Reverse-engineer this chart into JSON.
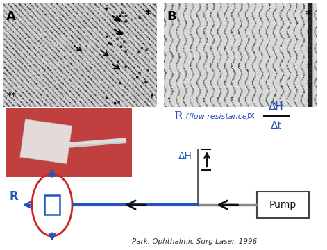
{
  "bg_color": "#ffffff",
  "blue_color": "#2255bb",
  "red_color": "#cc2222",
  "dark_color": "#111111",
  "gray_tube_color": "#888888",
  "r_label": "R",
  "pump_label": "Pump",
  "dh_label": "ΔH",
  "formula_r": "R",
  "formula_sub": " (flow resistance)",
  "formula_prop": "∝",
  "frac_top": "ΔH",
  "frac_bot": "Δt",
  "citation": "Park, Ophthalmic Surg Laser, 1996",
  "panel_a_label": "A",
  "panel_b_label": "B",
  "figsize": [
    4.71,
    3.6
  ],
  "dpi": 100
}
